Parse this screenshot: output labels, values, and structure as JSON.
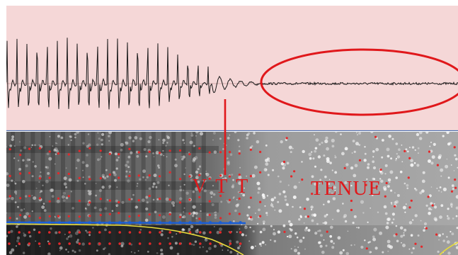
{
  "annotations": {
    "vtt_label": "V T T",
    "tenue_label": "TENUE"
  },
  "colors": {
    "waveform_background": "#f5d7d7",
    "waveform_trace": "#1a1a1a",
    "annotation_red": "#e0181b",
    "formant_line_blue": "#1b5fd6",
    "pitch_curve_yellow": "#e8dc3c",
    "formant_dots_red": "#e4282a",
    "spectrogram_dark": "#1e1e1e",
    "panel_divider": "#4a6fb0"
  },
  "icons": {
    "tenue_ellipse": "ellipse-outline",
    "vtt_marker": "vertical-marker-line"
  }
}
